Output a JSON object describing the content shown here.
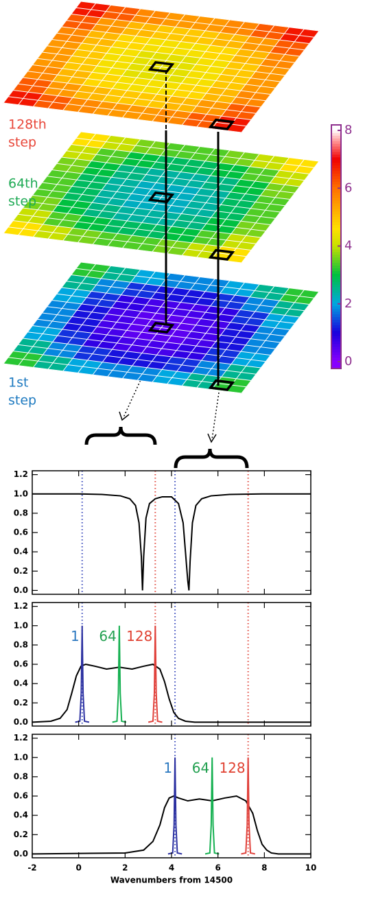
{
  "chart_data": [
    {
      "type": "layers",
      "clim": [
        0,
        8
      ],
      "colorbar_ticks": [
        0,
        2,
        4,
        6,
        8
      ],
      "colorbar_color": "#8e2f8e",
      "colorscale": [
        {
          "value": 0,
          "color": "#8800ff"
        },
        {
          "value": 1,
          "color": "#1a00dd"
        },
        {
          "value": 2,
          "color": "#00a8e0"
        },
        {
          "value": 3,
          "color": "#00c040"
        },
        {
          "value": 4,
          "color": "#c8e000"
        },
        {
          "value": 4.6,
          "color": "#ffe000"
        },
        {
          "value": 6,
          "color": "#ff7000"
        },
        {
          "value": 7,
          "color": "#f00000"
        },
        {
          "value": 7.6,
          "color": "#ff9090"
        },
        {
          "value": 8,
          "color": "#ffffff"
        }
      ],
      "layers": [
        {
          "label": [
            "128th",
            "step"
          ],
          "color": "#e8473a",
          "values": [
            [
              6.8,
              6.2,
              5.7,
              5.5,
              5.5,
              5.7,
              6.2,
              6.8
            ],
            [
              6.2,
              5.5,
              5.1,
              4.9,
              4.9,
              5.1,
              5.5,
              6.2
            ],
            [
              5.7,
              5.1,
              4.7,
              4.5,
              4.5,
              4.7,
              5.1,
              5.7
            ],
            [
              5.5,
              4.9,
              4.5,
              4.3,
              4.3,
              4.5,
              4.9,
              5.5
            ],
            [
              5.5,
              4.9,
              4.5,
              4.3,
              4.3,
              4.5,
              4.9,
              5.5
            ],
            [
              5.7,
              5.1,
              4.7,
              4.5,
              4.5,
              4.7,
              5.1,
              5.7
            ],
            [
              6.2,
              5.5,
              5.1,
              4.9,
              4.9,
              5.1,
              5.5,
              6.2
            ],
            [
              6.8,
              6.2,
              5.7,
              5.5,
              5.5,
              5.7,
              6.2,
              6.8
            ]
          ]
        },
        {
          "label": [
            "64th",
            "step"
          ],
          "color": "#1faa55",
          "values": [
            [
              4.6,
              4.0,
              3.6,
              3.4,
              3.4,
              3.6,
              4.0,
              4.6
            ],
            [
              4.0,
              3.4,
              3.0,
              2.8,
              2.8,
              3.0,
              3.4,
              4.0
            ],
            [
              3.6,
              3.0,
              2.6,
              2.4,
              2.4,
              2.6,
              3.0,
              3.6
            ],
            [
              3.4,
              2.8,
              2.4,
              2.2,
              2.2,
              2.4,
              2.8,
              3.4
            ],
            [
              3.4,
              2.8,
              2.4,
              2.2,
              2.2,
              2.4,
              2.8,
              3.4
            ],
            [
              3.6,
              3.0,
              2.6,
              2.4,
              2.4,
              2.6,
              3.0,
              3.6
            ],
            [
              4.0,
              3.4,
              3.0,
              2.8,
              2.8,
              3.0,
              3.4,
              4.0
            ],
            [
              4.6,
              4.0,
              3.6,
              3.4,
              3.4,
              3.6,
              4.0,
              4.6
            ]
          ]
        },
        {
          "label": [
            "1st",
            "step"
          ],
          "color": "#1e7ac0",
          "values": [
            [
              3.2,
              2.5,
              2.0,
              1.8,
              1.8,
              2.0,
              2.5,
              3.2
            ],
            [
              2.5,
              1.8,
              1.3,
              1.1,
              1.1,
              1.3,
              1.8,
              2.5
            ],
            [
              2.0,
              1.3,
              0.8,
              0.6,
              0.6,
              0.8,
              1.3,
              2.0
            ],
            [
              1.8,
              1.1,
              0.6,
              0.4,
              0.4,
              0.6,
              1.1,
              1.8
            ],
            [
              1.8,
              1.1,
              0.6,
              0.4,
              0.4,
              0.6,
              1.1,
              1.8
            ],
            [
              2.0,
              1.3,
              0.8,
              0.6,
              0.6,
              0.8,
              1.3,
              2.0
            ],
            [
              2.5,
              1.8,
              1.3,
              1.1,
              1.1,
              1.3,
              1.8,
              2.5
            ],
            [
              3.2,
              2.5,
              2.0,
              1.8,
              1.8,
              2.0,
              2.5,
              3.2
            ]
          ]
        }
      ]
    },
    {
      "type": "line",
      "xlim": [
        -2,
        10
      ],
      "ylim": [
        -0.04,
        1.24
      ],
      "xticks": [
        -2,
        0,
        2,
        4,
        6,
        8,
        10
      ],
      "yticks": [
        {
          "value": 0,
          "label": "0.0"
        },
        0.2,
        0.4,
        0.6,
        0.8,
        {
          "value": 1,
          "label": "1.0"
        },
        1.2
      ],
      "ref_lines": [
        {
          "x": 0.15,
          "color": "#3344bb"
        },
        {
          "x": 3.3,
          "color": "#e0443a"
        },
        {
          "x": 4.15,
          "color": "#3344bb"
        },
        {
          "x": 7.3,
          "color": "#e0443a"
        }
      ],
      "series": [
        {
          "color": "#000000",
          "x": [
            -2,
            0,
            1,
            1.8,
            2.2,
            2.45,
            2.6,
            2.7,
            2.75,
            2.8,
            2.9,
            3.05,
            3.3,
            3.6,
            4.0,
            4.3,
            4.5,
            4.6,
            4.7,
            4.75,
            4.8,
            4.9,
            5.05,
            5.3,
            5.7,
            6.5,
            8,
            10
          ],
          "values": [
            1,
            1,
            0.995,
            0.98,
            0.95,
            0.88,
            0.7,
            0.35,
            0,
            0.35,
            0.75,
            0.9,
            0.95,
            0.97,
            0.97,
            0.9,
            0.7,
            0.4,
            0.1,
            0,
            0.3,
            0.7,
            0.88,
            0.95,
            0.98,
            0.995,
            1,
            1
          ]
        }
      ]
    },
    {
      "type": "line",
      "xlim": [
        -2,
        10
      ],
      "ylim": [
        -0.04,
        1.24
      ],
      "xticks": [
        -2,
        0,
        2,
        4,
        6,
        8,
        10
      ],
      "yticks": [
        {
          "value": 0,
          "label": "0.0"
        },
        0.2,
        0.4,
        0.6,
        0.8,
        {
          "value": 1,
          "label": "1.0"
        },
        1.2
      ],
      "ref_lines": [
        {
          "x": 0.15,
          "color": "#3344bb"
        },
        {
          "x": 3.3,
          "color": "#e0443a"
        },
        {
          "x": 4.15,
          "color": "#3344bb"
        },
        {
          "x": 7.3,
          "color": "#e0443a"
        }
      ],
      "series": [
        {
          "color": "#000000",
          "x": [
            -2,
            -1.2,
            -0.8,
            -0.5,
            -0.3,
            -0.1,
            0.1,
            0.3,
            0.7,
            1.2,
            1.75,
            2.3,
            2.8,
            3.2,
            3.5,
            3.7,
            3.9,
            4.1,
            4.3,
            4.6,
            5,
            6,
            10
          ],
          "values": [
            0,
            0.01,
            0.04,
            0.13,
            0.3,
            0.48,
            0.58,
            0.6,
            0.58,
            0.55,
            0.57,
            0.55,
            0.58,
            0.6,
            0.55,
            0.42,
            0.24,
            0.1,
            0.04,
            0.01,
            0,
            0,
            0
          ]
        },
        {
          "color": "#2a2fa0",
          "label": "1",
          "label_color": "#2b78c0",
          "x": [
            -0.15,
            0.05,
            0.11,
            0.15,
            0.19,
            0.25,
            0.45
          ],
          "values": [
            0,
            0.01,
            0.3,
            1,
            0.3,
            0.01,
            0
          ]
        },
        {
          "color": "#14b050",
          "label": "64",
          "label_color": "#22a050",
          "x": [
            1.45,
            1.65,
            1.71,
            1.75,
            1.79,
            1.85,
            2.05
          ],
          "values": [
            0,
            0.01,
            0.3,
            1,
            0.3,
            0.01,
            0
          ]
        },
        {
          "color": "#e0403a",
          "label": "128",
          "label_color": "#e04030",
          "x": [
            3.0,
            3.2,
            3.26,
            3.3,
            3.34,
            3.4,
            3.6
          ],
          "values": [
            0,
            0.01,
            0.3,
            1,
            0.3,
            0.01,
            0
          ]
        }
      ]
    },
    {
      "type": "line",
      "xlim": [
        -2,
        10
      ],
      "ylim": [
        -0.04,
        1.24
      ],
      "xticks": [
        -2,
        0,
        2,
        4,
        6,
        8,
        10
      ],
      "xtick_labels": true,
      "xlabel": "Wavenumbers from 14500",
      "yticks": [
        {
          "value": 0,
          "label": "0.0"
        },
        0.2,
        0.4,
        0.6,
        0.8,
        {
          "value": 1,
          "label": "1.0"
        },
        1.2
      ],
      "ref_lines": [
        {
          "x": 4.15,
          "color": "#3344bb"
        },
        {
          "x": 7.3,
          "color": "#e0443a"
        }
      ],
      "series": [
        {
          "color": "#000000",
          "x": [
            -2,
            2,
            2.8,
            3.2,
            3.5,
            3.7,
            3.9,
            4.1,
            4.3,
            4.7,
            5.2,
            5.75,
            6.3,
            6.8,
            7.2,
            7.5,
            7.7,
            7.9,
            8.1,
            8.3,
            8.6,
            9,
            10
          ],
          "values": [
            0,
            0.01,
            0.04,
            0.13,
            0.3,
            0.48,
            0.58,
            0.6,
            0.58,
            0.55,
            0.57,
            0.55,
            0.58,
            0.6,
            0.55,
            0.42,
            0.24,
            0.1,
            0.04,
            0.01,
            0,
            0,
            0
          ]
        },
        {
          "color": "#2a2fa0",
          "label": "1",
          "label_color": "#2b78c0",
          "x": [
            3.85,
            4.05,
            4.11,
            4.15,
            4.19,
            4.25,
            4.45
          ],
          "values": [
            0,
            0.01,
            0.3,
            1,
            0.3,
            0.01,
            0
          ]
        },
        {
          "color": "#14b050",
          "label": "64",
          "label_color": "#22a050",
          "x": [
            5.45,
            5.65,
            5.71,
            5.75,
            5.79,
            5.85,
            6.05
          ],
          "values": [
            0,
            0.01,
            0.3,
            1,
            0.3,
            0.01,
            0
          ]
        },
        {
          "color": "#e0403a",
          "label": "128",
          "label_color": "#e04030",
          "x": [
            7.0,
            7.2,
            7.26,
            7.3,
            7.34,
            7.4,
            7.6
          ],
          "values": [
            0,
            0.01,
            0.3,
            1,
            0.3,
            0.01,
            0
          ]
        }
      ]
    }
  ]
}
